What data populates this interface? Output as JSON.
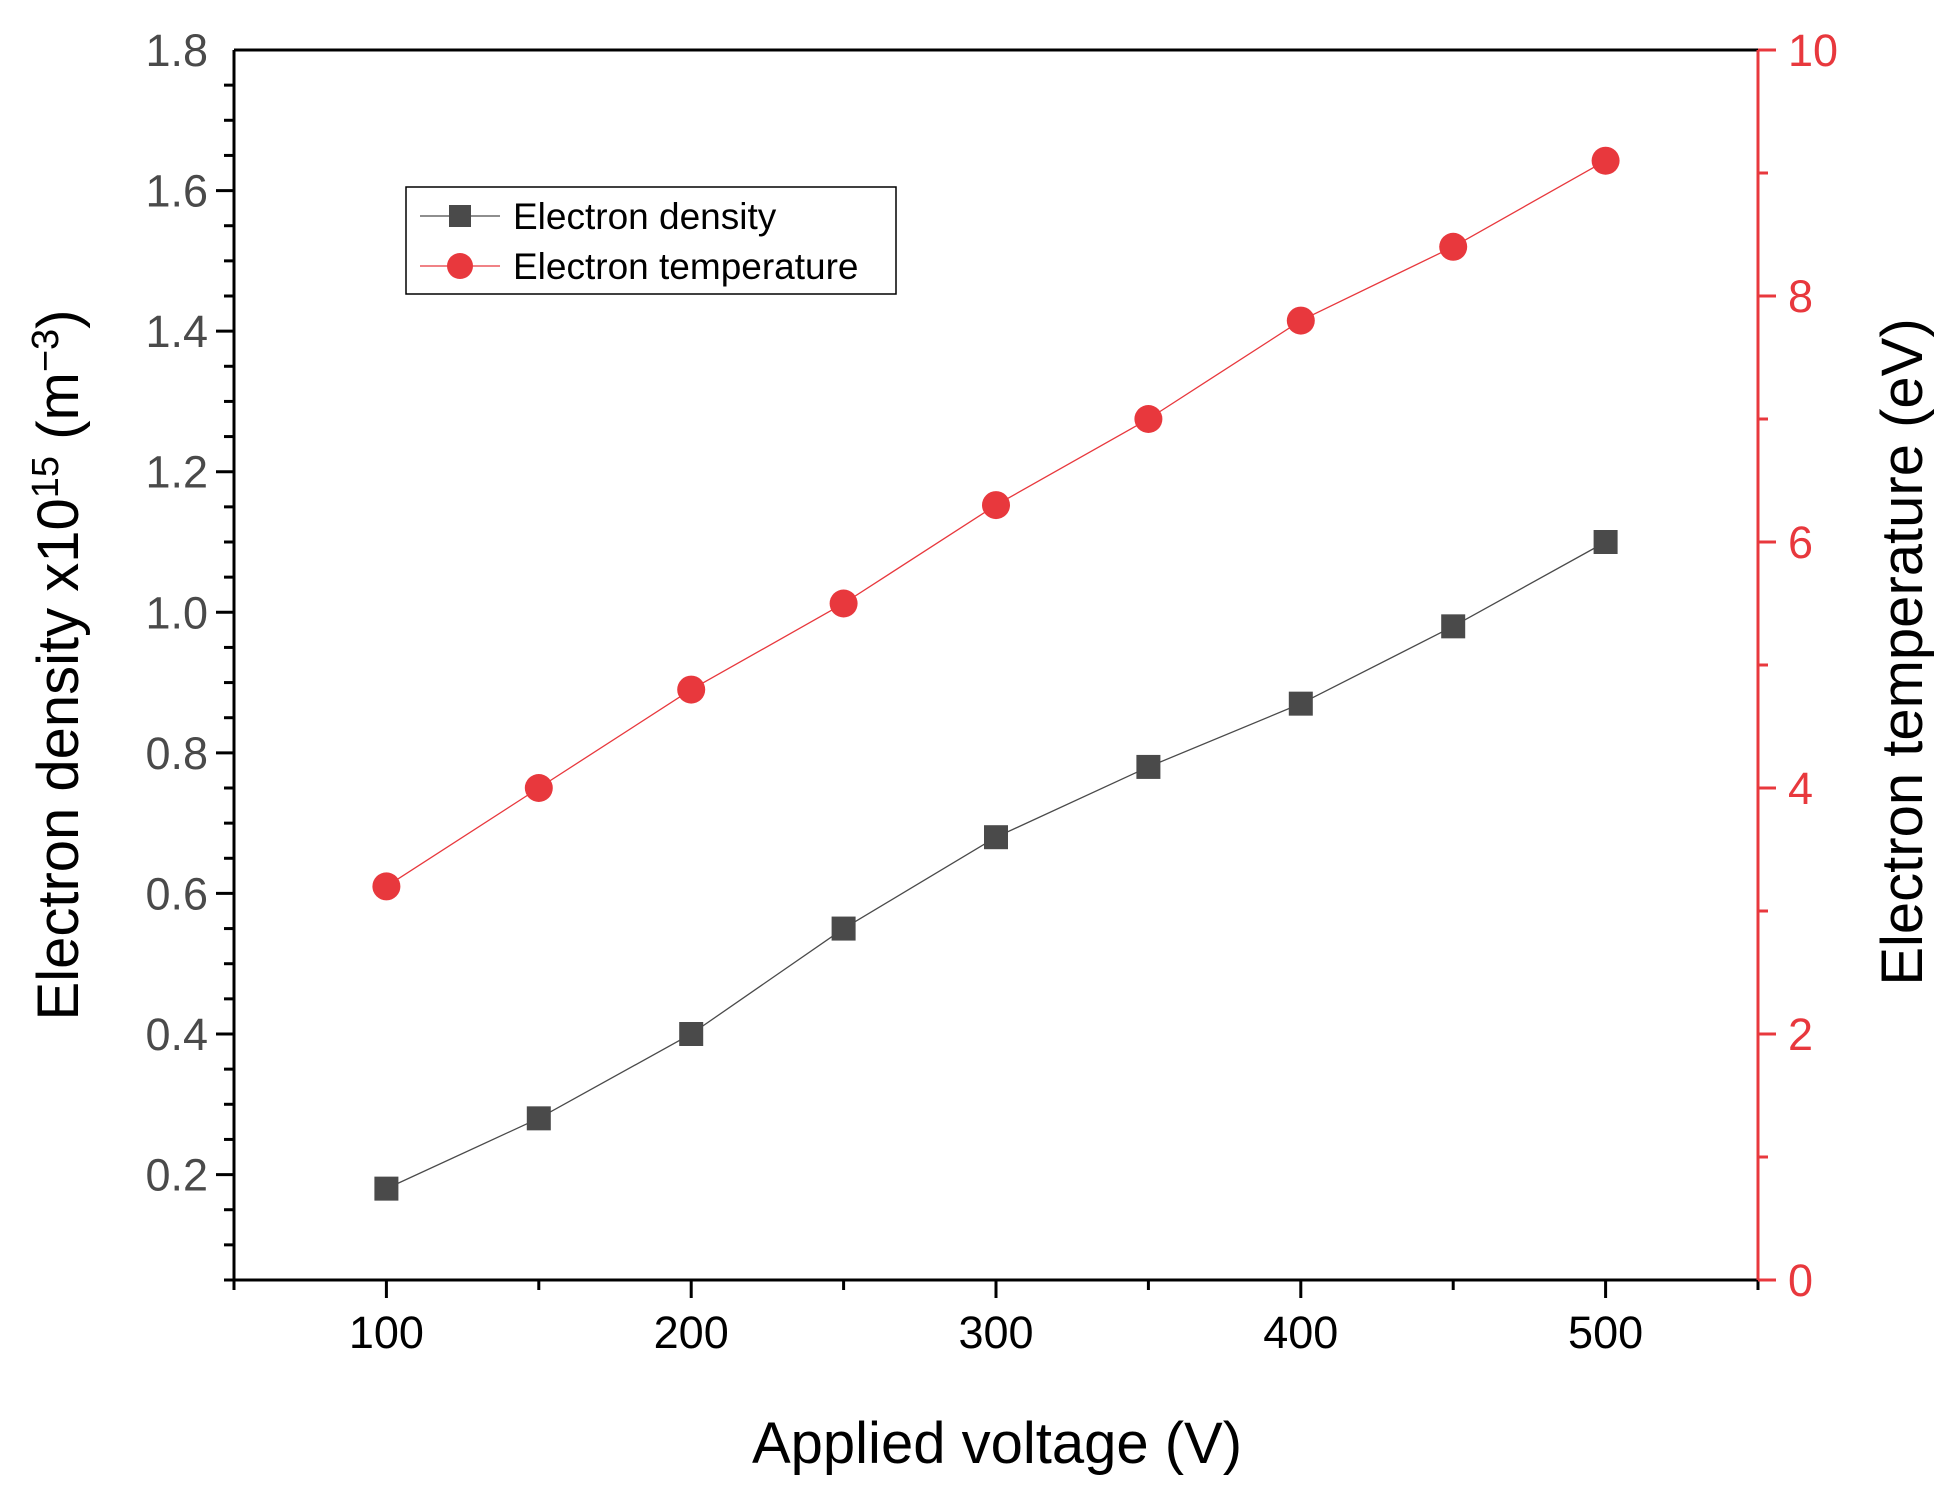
{
  "chart_data": {
    "type": "line",
    "title": "",
    "xlabel": "Applied voltage (V)",
    "ylabel": {
      "main": "Electron density x10",
      "sup": "15",
      "unit_open": " (m",
      "unit_sup": "−3",
      "unit_close": ")"
    },
    "y2label": "Electron temperature (eV)",
    "xlim": [
      50,
      550
    ],
    "ylim": [
      0.05,
      1.8
    ],
    "y2lim": [
      0,
      10
    ],
    "x_ticks": [
      100,
      200,
      300,
      400,
      500
    ],
    "x_tick_labels": [
      "100",
      "200",
      "300",
      "400",
      "500"
    ],
    "y_ticks": [
      0.2,
      0.4,
      0.6,
      0.8,
      1.0,
      1.2,
      1.4,
      1.6,
      1.8
    ],
    "y_tick_labels": [
      "0.2",
      "0.4",
      "0.6",
      "0.8",
      "1.0",
      "1.2",
      "1.4",
      "1.6",
      "1.8"
    ],
    "y2_ticks": [
      0,
      2,
      4,
      6,
      8,
      10
    ],
    "y2_tick_labels": [
      "0",
      "2",
      "4",
      "6",
      "8",
      "10"
    ],
    "legend_position": "top-left",
    "grid": false,
    "series": [
      {
        "name": "Electron density",
        "axis": "left",
        "marker": "square",
        "color": "#4a4a4a",
        "x": [
          100,
          150,
          200,
          250,
          300,
          350,
          400,
          450,
          500
        ],
        "values": [
          0.18,
          0.28,
          0.4,
          0.55,
          0.68,
          0.78,
          0.87,
          0.98,
          1.1
        ]
      },
      {
        "name": "Electron temperature",
        "axis": "right",
        "marker": "circle",
        "color": "#e8383d",
        "x": [
          100,
          150,
          200,
          250,
          300,
          350,
          400,
          450,
          500
        ],
        "values": [
          3.2,
          4.0,
          4.8,
          5.5,
          6.3,
          7.0,
          7.8,
          8.4,
          9.1
        ]
      }
    ],
    "colors": {
      "left_axis": "#000000",
      "right_axis": "#e8383d",
      "tick_label": "#4a4a4a"
    }
  }
}
